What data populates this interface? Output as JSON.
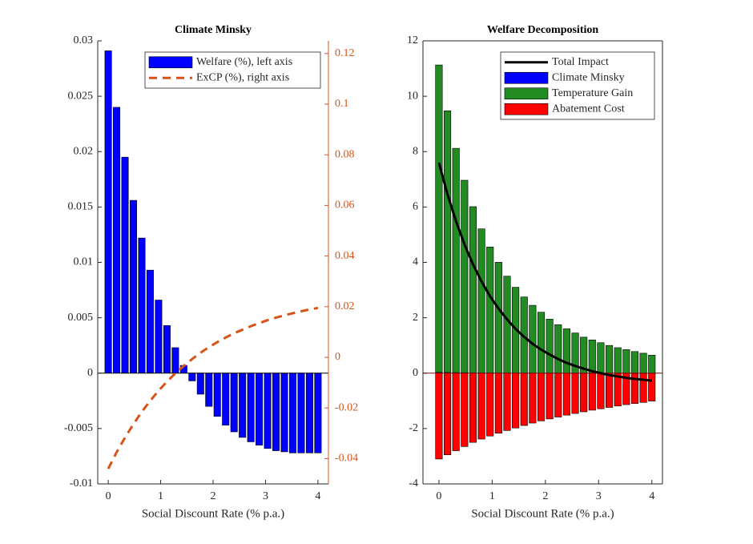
{
  "chart_data": [
    {
      "type": "bar",
      "title": "Climate Minsky",
      "xlabel": "Social Discount Rate (% p.a.)",
      "x": [
        0,
        0.16,
        0.32,
        0.48,
        0.64,
        0.8,
        0.96,
        1.12,
        1.28,
        1.44,
        1.6,
        1.76,
        1.92,
        2.08,
        2.24,
        2.4,
        2.56,
        2.72,
        2.88,
        3.04,
        3.2,
        3.36,
        3.52,
        3.68,
        3.84,
        4
      ],
      "series": [
        {
          "name": "Welfare (%), left axis",
          "type": "bar",
          "color": "#0000ff",
          "values": [
            0.0291,
            0.024,
            0.0195,
            0.0156,
            0.0122,
            0.0093,
            0.0066,
            0.0043,
            0.0023,
            0.0007,
            -0.0007,
            -0.0019,
            -0.003,
            -0.0039,
            -0.0047,
            -0.0053,
            -0.0058,
            -0.0062,
            -0.0065,
            -0.0068,
            -0.007,
            -0.0071,
            -0.0072,
            -0.0072,
            -0.0072,
            -0.0072
          ]
        },
        {
          "name": "ExCP (%), right axis",
          "type": "line",
          "axis": "y2",
          "color": "#d95319",
          "line_style": "dashed",
          "values": [
            -0.044,
            -0.0375,
            -0.0317,
            -0.0264,
            -0.0215,
            -0.0172,
            -0.0132,
            -0.0096,
            -0.0063,
            -0.0034,
            -0.0007,
            0.0018,
            0.004,
            0.006,
            0.0078,
            0.0095,
            0.0109,
            0.0123,
            0.0135,
            0.0147,
            0.0157,
            0.0166,
            0.0174,
            0.0182,
            0.0189,
            0.0195
          ]
        }
      ],
      "xlim": [
        -0.2,
        4.2
      ],
      "xticks": [
        0,
        1,
        2,
        3,
        4
      ],
      "ylim": [
        -0.01,
        0.03
      ],
      "yticks": [
        -0.01,
        -0.005,
        0,
        0.005,
        0.01,
        0.015,
        0.02,
        0.025,
        0.03
      ],
      "y2lim": [
        -0.05,
        0.125
      ],
      "y2ticks": [
        -0.04,
        -0.02,
        0,
        0.02,
        0.04,
        0.06,
        0.08,
        0.1,
        0.12
      ],
      "y2color": "#d95319",
      "box": false,
      "legend": "upper right"
    },
    {
      "type": "bar",
      "title": "Welfare Decomposition",
      "xlabel": "Social Discount Rate (% p.a.)",
      "x": [
        0,
        0.16,
        0.32,
        0.48,
        0.64,
        0.8,
        0.96,
        1.12,
        1.28,
        1.44,
        1.6,
        1.76,
        1.92,
        2.08,
        2.24,
        2.4,
        2.56,
        2.72,
        2.88,
        3.04,
        3.2,
        3.36,
        3.52,
        3.68,
        3.84,
        4
      ],
      "series": [
        {
          "name": "Total Impact",
          "type": "line",
          "color": "#000000",
          "line_style": "solid",
          "values": [
            7.6,
            6.465,
            5.49,
            4.65,
            3.93,
            3.31,
            2.78,
            2.33,
            1.94,
            1.6,
            1.31,
            1.06,
            0.85,
            0.67,
            0.51,
            0.37,
            0.26,
            0.16,
            0.07,
            0,
            -0.07,
            -0.12,
            -0.17,
            -0.21,
            -0.24,
            -0.27
          ]
        },
        {
          "name": "Climate Minsky",
          "type": "bar",
          "color": "#0000ff",
          "values": [
            0.0291,
            0.024,
            0.0195,
            0.0156,
            0.0122,
            0.0093,
            0.0066,
            0.0043,
            0.0023,
            0.0007,
            -0.0007,
            -0.0019,
            -0.003,
            -0.0039,
            -0.0047,
            -0.0053,
            -0.0058,
            -0.0062,
            -0.0065,
            -0.0068,
            -0.007,
            -0.0071,
            -0.0072,
            -0.0072,
            -0.0072,
            -0.0072
          ]
        },
        {
          "name": "Temperature Gain",
          "type": "bar",
          "color": "#228b22",
          "values": [
            11.1,
            9.45,
            8.1,
            6.95,
            6.0,
            5.2,
            4.55,
            4.0,
            3.5,
            3.1,
            2.75,
            2.45,
            2.2,
            1.95,
            1.75,
            1.6,
            1.45,
            1.3,
            1.2,
            1.1,
            1.0,
            0.92,
            0.85,
            0.78,
            0.72,
            0.65
          ]
        },
        {
          "name": "Abatement Cost",
          "type": "bar",
          "color": "#ff0000",
          "values": [
            -3.1,
            -2.95,
            -2.8,
            -2.65,
            -2.5,
            -2.38,
            -2.27,
            -2.17,
            -2.07,
            -1.98,
            -1.89,
            -1.8,
            -1.72,
            -1.65,
            -1.58,
            -1.51,
            -1.45,
            -1.39,
            -1.33,
            -1.28,
            -1.23,
            -1.18,
            -1.13,
            -1.09,
            -1.05,
            -1.0
          ]
        }
      ],
      "xlim": [
        -0.3,
        4.2
      ],
      "xticks": [
        0,
        1,
        2,
        3,
        4
      ],
      "ylim": [
        -4,
        12
      ],
      "yticks": [
        -4,
        -2,
        0,
        2,
        4,
        6,
        8,
        10,
        12
      ],
      "box": true,
      "legend": "upper right"
    }
  ]
}
